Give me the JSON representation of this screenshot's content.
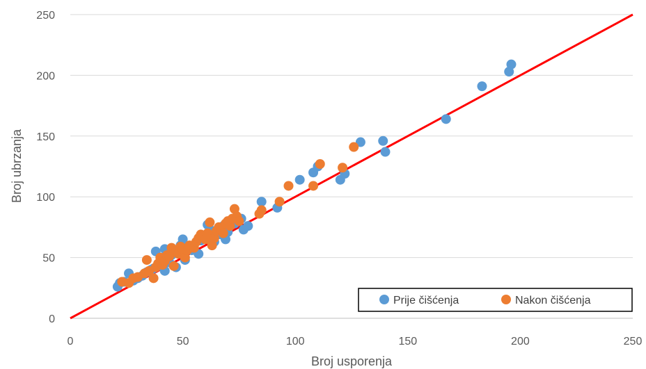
{
  "chart_data": {
    "type": "scatter",
    "title": "",
    "xlabel": "Broj usporenja",
    "ylabel": "Broj ubrzanja",
    "xlim": [
      0,
      250
    ],
    "ylim": [
      0,
      250
    ],
    "x_ticks": [
      "0",
      "50",
      "100",
      "150",
      "200",
      "250"
    ],
    "y_ticks": [
      "0",
      "50",
      "100",
      "150",
      "200",
      "250"
    ],
    "grid": "horizontal",
    "legend_position": "bottom-right",
    "trendline": {
      "x": [
        0,
        250
      ],
      "y": [
        0,
        250
      ],
      "color": "#ff0000"
    },
    "series": [
      {
        "name": "Prije čišćenja",
        "color": "#5b9bd5",
        "points": [
          [
            21,
            26
          ],
          [
            22,
            29
          ],
          [
            24,
            30
          ],
          [
            26,
            37
          ],
          [
            28,
            31
          ],
          [
            30,
            33
          ],
          [
            32,
            35
          ],
          [
            34,
            38
          ],
          [
            36,
            40
          ],
          [
            37,
            41
          ],
          [
            38,
            55
          ],
          [
            39,
            43
          ],
          [
            40,
            45
          ],
          [
            41,
            48
          ],
          [
            42,
            39
          ],
          [
            42,
            57
          ],
          [
            43,
            50
          ],
          [
            44,
            46
          ],
          [
            45,
            52
          ],
          [
            46,
            54
          ],
          [
            47,
            42
          ],
          [
            48,
            56
          ],
          [
            49,
            60
          ],
          [
            50,
            65
          ],
          [
            51,
            48
          ],
          [
            52,
            58
          ],
          [
            54,
            56
          ],
          [
            55,
            60
          ],
          [
            57,
            53
          ],
          [
            58,
            64
          ],
          [
            59,
            66
          ],
          [
            60,
            68
          ],
          [
            61,
            77
          ],
          [
            62,
            70
          ],
          [
            63,
            72
          ],
          [
            64,
            63
          ],
          [
            66,
            74
          ],
          [
            67,
            69
          ],
          [
            68,
            76
          ],
          [
            69,
            65
          ],
          [
            70,
            71
          ],
          [
            72,
            80
          ],
          [
            73,
            78
          ],
          [
            75,
            82
          ],
          [
            76,
            82
          ],
          [
            77,
            73
          ],
          [
            79,
            76
          ],
          [
            85,
            96
          ],
          [
            92,
            91
          ],
          [
            102,
            114
          ],
          [
            108,
            120
          ],
          [
            110,
            125
          ],
          [
            120,
            114
          ],
          [
            122,
            119
          ],
          [
            129,
            145
          ],
          [
            139,
            146
          ],
          [
            140,
            137
          ],
          [
            167,
            164
          ],
          [
            183,
            191
          ],
          [
            195,
            203
          ],
          [
            196,
            209
          ]
        ]
      },
      {
        "name": "Nakon čišćenja",
        "color": "#ed7d31",
        "points": [
          [
            23,
            30
          ],
          [
            26,
            29
          ],
          [
            28,
            33
          ],
          [
            30,
            34
          ],
          [
            33,
            37
          ],
          [
            34,
            48
          ],
          [
            35,
            39
          ],
          [
            37,
            33
          ],
          [
            38,
            42
          ],
          [
            39,
            45
          ],
          [
            40,
            50
          ],
          [
            41,
            44
          ],
          [
            42,
            47
          ],
          [
            43,
            52
          ],
          [
            44,
            51
          ],
          [
            45,
            58
          ],
          [
            46,
            43
          ],
          [
            47,
            55
          ],
          [
            48,
            53
          ],
          [
            49,
            59
          ],
          [
            50,
            57
          ],
          [
            51,
            50
          ],
          [
            52,
            56
          ],
          [
            53,
            60
          ],
          [
            55,
            58
          ],
          [
            56,
            63
          ],
          [
            57,
            66
          ],
          [
            58,
            69
          ],
          [
            59,
            67
          ],
          [
            60,
            65
          ],
          [
            61,
            70
          ],
          [
            62,
            79
          ],
          [
            63,
            60
          ],
          [
            64,
            66
          ],
          [
            65,
            72
          ],
          [
            66,
            75
          ],
          [
            67,
            73
          ],
          [
            68,
            70
          ],
          [
            69,
            78
          ],
          [
            70,
            80
          ],
          [
            71,
            76
          ],
          [
            72,
            82
          ],
          [
            73,
            90
          ],
          [
            74,
            84
          ],
          [
            75,
            80
          ],
          [
            84,
            86
          ],
          [
            85,
            89
          ],
          [
            93,
            96
          ],
          [
            97,
            109
          ],
          [
            108,
            109
          ],
          [
            111,
            127
          ],
          [
            121,
            124
          ],
          [
            126,
            141
          ]
        ]
      }
    ]
  }
}
